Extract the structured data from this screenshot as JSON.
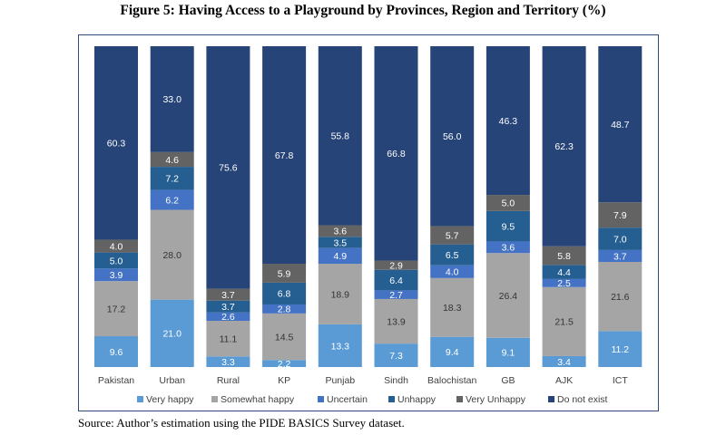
{
  "figure": {
    "title": "Figure 5: Having Access to a Playground by Provinces, Region and Territory (%)",
    "source": "Source: Author’s estimation using the PIDE BASICS Survey dataset."
  },
  "chart_data": {
    "type": "bar",
    "stacked": true,
    "orientation": "vertical",
    "ylim": [
      0,
      100
    ],
    "grid": false,
    "legend_position": "bottom",
    "categories": [
      "Pakistan",
      "Urban",
      "Rural",
      "KP",
      "Punjab",
      "Sindh",
      "Balochistan",
      "GB",
      "AJK",
      "ICT"
    ],
    "series": [
      {
        "name": "Very happy",
        "color": "#5b9bd5",
        "label_color": "#ffffff",
        "values": [
          9.6,
          21.0,
          3.3,
          2.2,
          13.3,
          7.3,
          9.4,
          9.1,
          3.4,
          11.2
        ]
      },
      {
        "name": "Somewhat happy",
        "color": "#a5a5a5",
        "label_color": "#333333",
        "values": [
          17.2,
          28.0,
          11.1,
          14.5,
          18.9,
          13.9,
          18.3,
          26.4,
          21.5,
          21.6
        ]
      },
      {
        "name": "Uncertain",
        "color": "#4472c4",
        "label_color": "#ffffff",
        "values": [
          3.9,
          6.2,
          2.6,
          2.8,
          4.9,
          2.7,
          4.0,
          3.6,
          2.5,
          3.7
        ]
      },
      {
        "name": "Unhappy",
        "color": "#255e91",
        "label_color": "#ffffff",
        "values": [
          5.0,
          7.2,
          3.7,
          6.8,
          3.5,
          6.4,
          6.5,
          9.5,
          4.4,
          7.0
        ]
      },
      {
        "name": "Very Unhappy",
        "color": "#636363",
        "label_color": "#ffffff",
        "values": [
          4.0,
          4.6,
          3.7,
          5.9,
          3.6,
          2.9,
          5.7,
          5.0,
          5.8,
          7.9
        ]
      },
      {
        "name": "Do not exist",
        "color": "#264478",
        "label_color": "#ffffff",
        "values": [
          60.3,
          33.0,
          75.6,
          67.8,
          55.8,
          66.8,
          56.0,
          46.3,
          62.3,
          48.7
        ]
      }
    ]
  }
}
